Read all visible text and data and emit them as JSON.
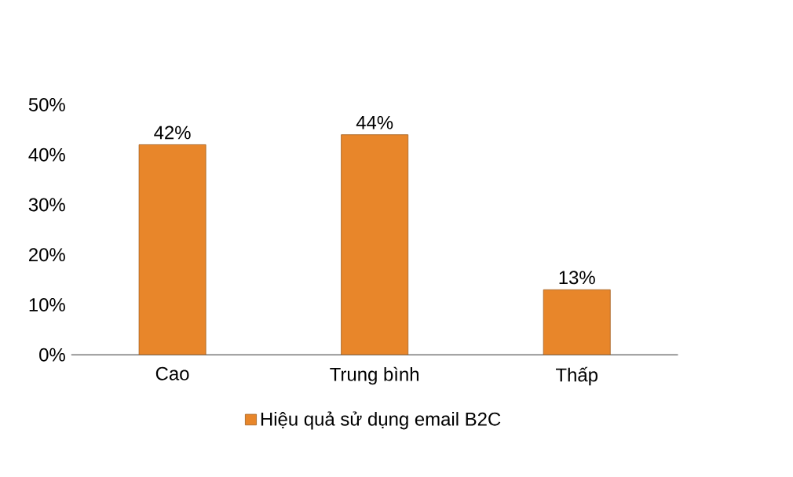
{
  "chart_data": {
    "type": "bar",
    "categories": [
      "Cao",
      "Trung bình",
      "Thấp"
    ],
    "series": [
      {
        "name": "Hiệu quả sử dụng email B2C",
        "color": "#e8862a",
        "values": [
          42,
          44,
          13
        ],
        "value_labels": [
          "42%",
          "44%",
          "13%"
        ]
      }
    ],
    "ylim": [
      0,
      50
    ],
    "yticks": [
      {
        "value": 0,
        "label": "0%"
      },
      {
        "value": 10,
        "label": "10%"
      },
      {
        "value": 20,
        "label": "20%"
      },
      {
        "value": 30,
        "label": "30%"
      },
      {
        "value": 40,
        "label": "40%"
      },
      {
        "value": 50,
        "label": "50%"
      }
    ],
    "legend": "bottom"
  }
}
